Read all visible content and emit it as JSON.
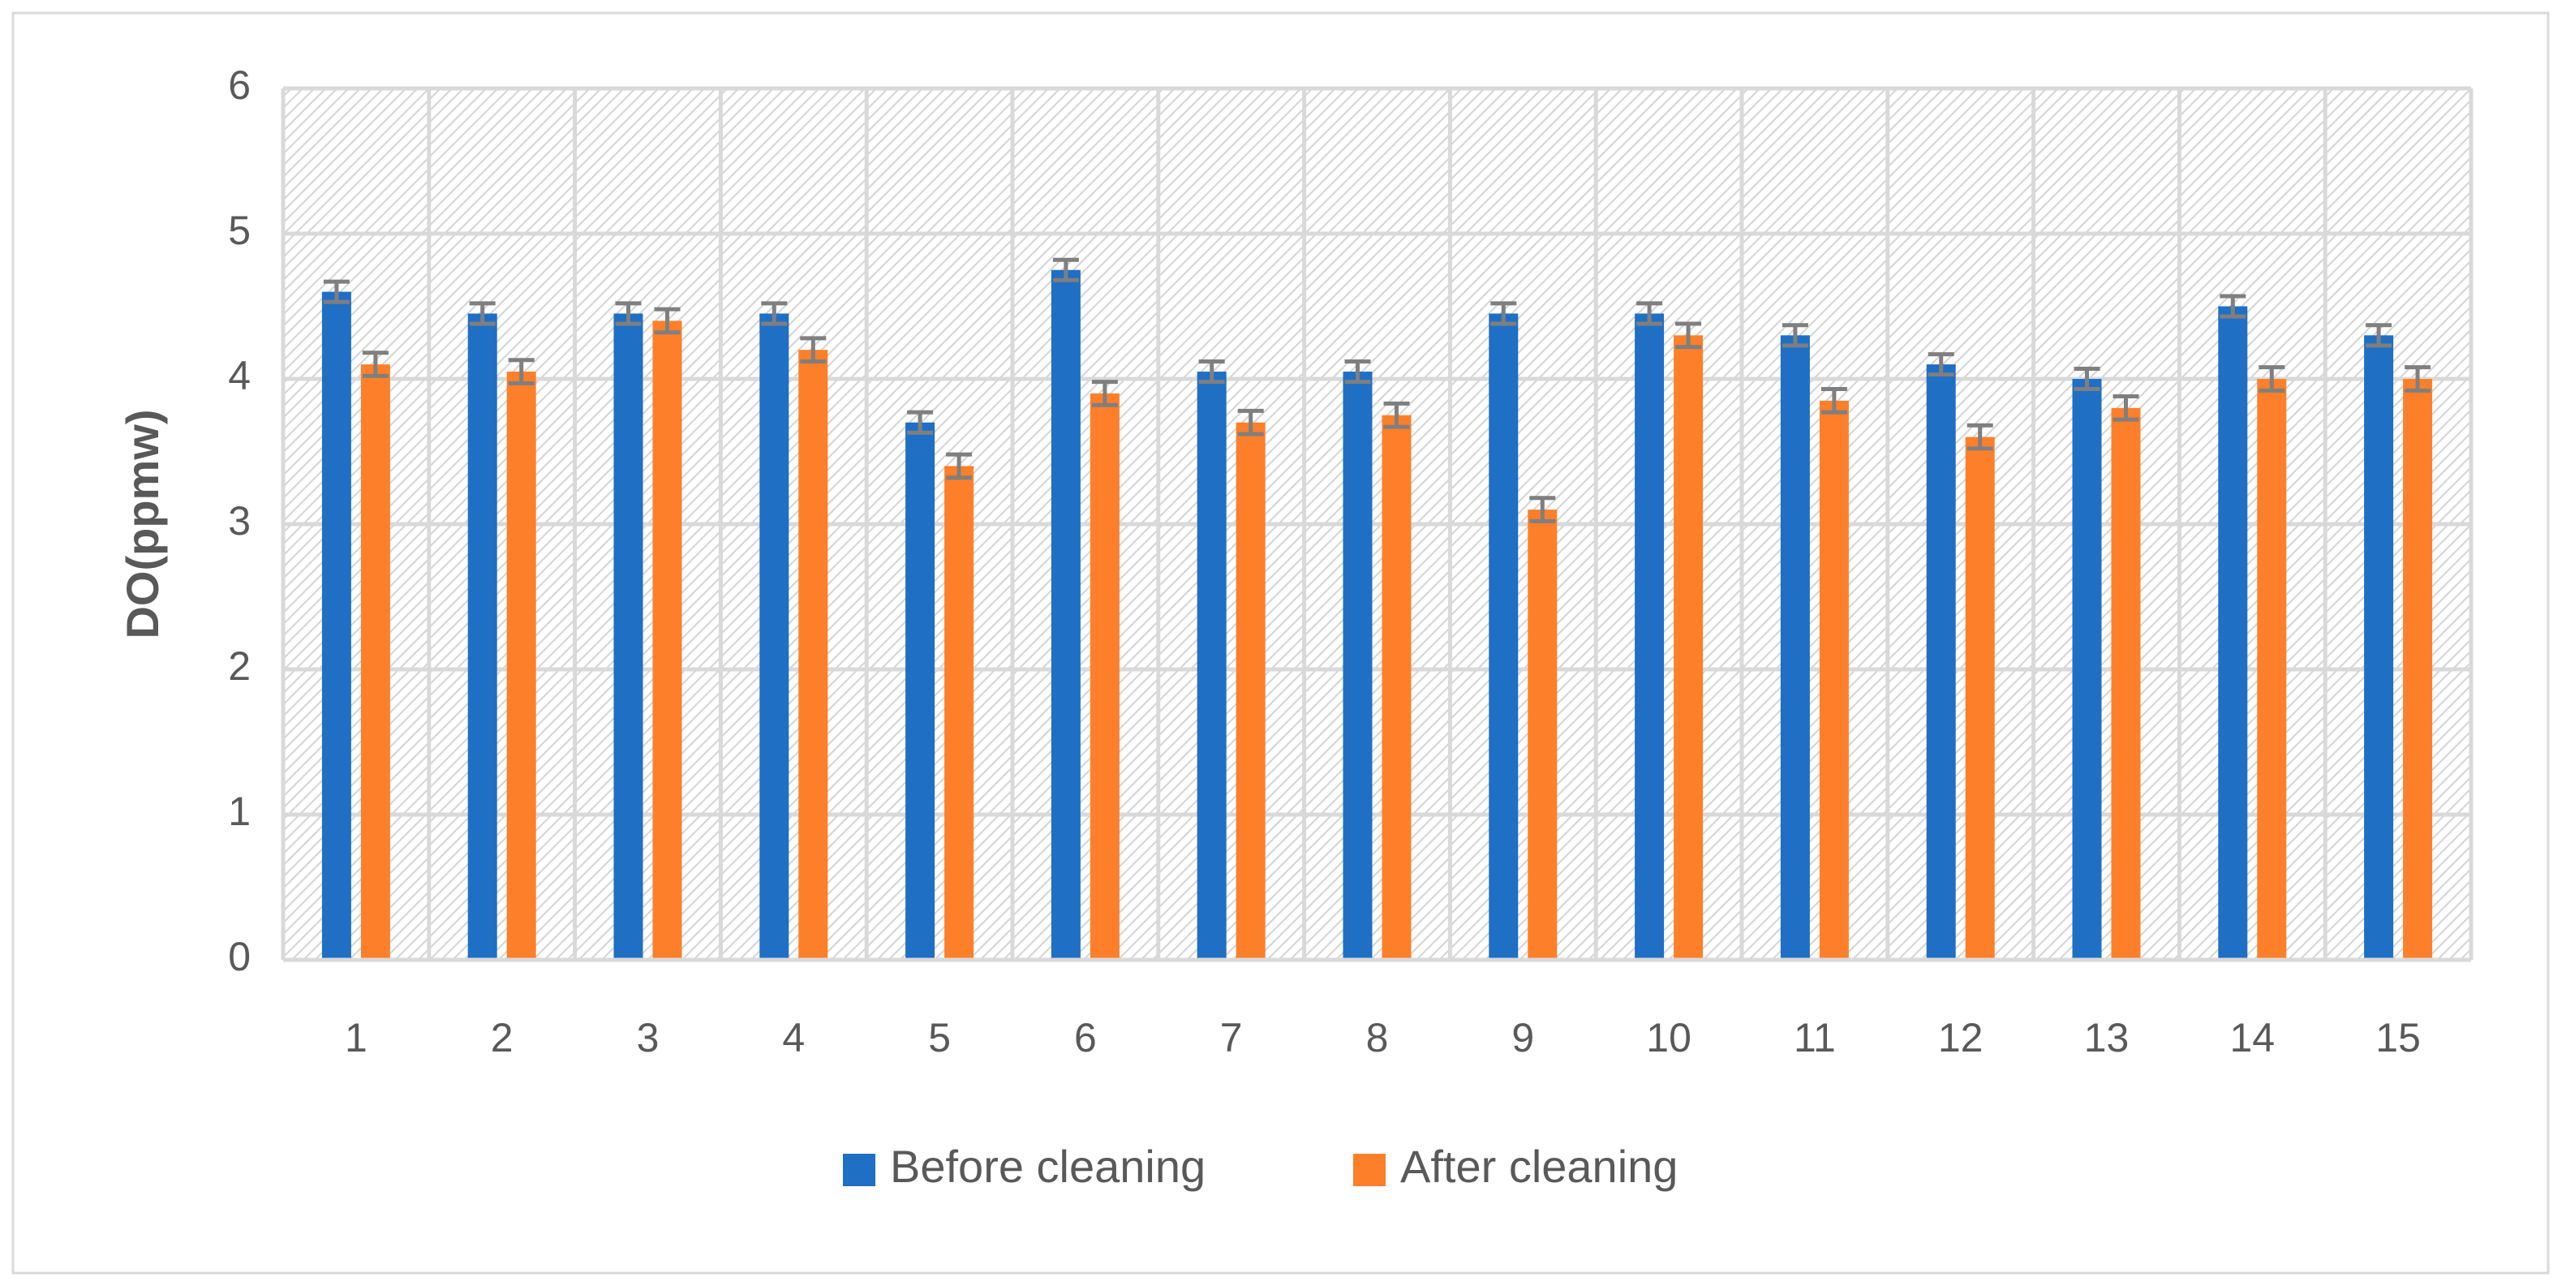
{
  "chart_data": {
    "type": "bar",
    "y_label": "DO(ppmw)",
    "categories": [
      "1",
      "2",
      "3",
      "4",
      "5",
      "6",
      "7",
      "8",
      "9",
      "10",
      "11",
      "12",
      "13",
      "14",
      "15"
    ],
    "series": [
      {
        "name": "Before cleaning",
        "color": "#1f6fc5",
        "values": [
          4.6,
          4.45,
          4.45,
          4.45,
          3.7,
          4.75,
          4.05,
          4.05,
          4.45,
          4.45,
          4.3,
          4.1,
          4.0,
          4.5,
          4.3
        ],
        "errors": [
          0.07,
          0.07,
          0.07,
          0.07,
          0.07,
          0.07,
          0.07,
          0.07,
          0.07,
          0.07,
          0.07,
          0.07,
          0.07,
          0.07,
          0.07
        ]
      },
      {
        "name": "After cleaning",
        "color": "#fe7f2a",
        "values": [
          4.1,
          4.05,
          4.4,
          4.2,
          3.4,
          3.9,
          3.7,
          3.75,
          3.1,
          4.3,
          3.85,
          3.6,
          3.8,
          4.0,
          4.0
        ],
        "errors": [
          0.08,
          0.08,
          0.08,
          0.08,
          0.08,
          0.08,
          0.08,
          0.08,
          0.08,
          0.08,
          0.08,
          0.08,
          0.08,
          0.08,
          0.08
        ]
      }
    ],
    "ylim": [
      0,
      6
    ],
    "yticks": [
      0,
      1,
      2,
      3,
      4,
      5,
      6
    ],
    "grid": true,
    "legend": "bottom"
  }
}
